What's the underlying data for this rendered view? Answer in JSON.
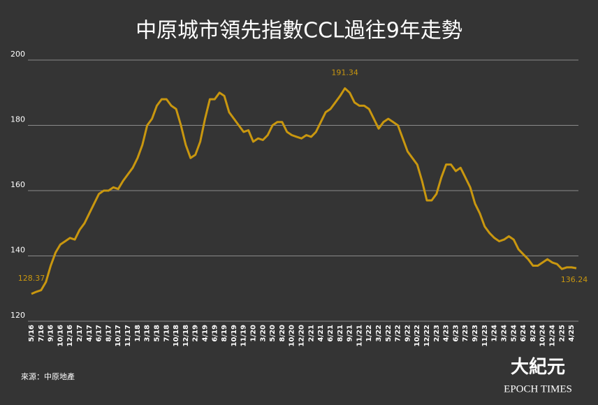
{
  "chart_data": {
    "type": "line",
    "title": "中原城市領先指數CCL過往9年走勢",
    "source": "來源：中原地產",
    "categories": [
      "5/16",
      null,
      "7/16",
      null,
      "9/16",
      null,
      "10/16",
      null,
      "12/16",
      null,
      "2/17",
      null,
      "4/17",
      null,
      "6/17",
      null,
      "8/17",
      null,
      "10/17",
      null,
      "11/17",
      null,
      "1/18",
      null,
      "3/18",
      null,
      "5/18",
      null,
      "7/18",
      null,
      "10/18",
      null,
      "12/18",
      null,
      "2/19",
      null,
      "4/19",
      null,
      "6/19",
      null,
      "8/19",
      null,
      "10/19",
      null,
      "11/19",
      null,
      "1/20",
      null,
      "3/20",
      null,
      "5/20",
      null,
      "8/20",
      null,
      "10/20",
      null,
      "12/20",
      null,
      "2/21",
      null,
      "4/21",
      null,
      "6/21",
      null,
      "8/21",
      null,
      "9/21",
      null,
      "11/21",
      null,
      "1/22",
      null,
      "3/22",
      null,
      "5/22",
      null,
      "7/22",
      null,
      "9/22",
      null,
      "10/22",
      null,
      "12/22",
      null,
      "2/23",
      null,
      "4/23",
      null,
      "6/23",
      null,
      "7/23",
      null,
      "9/23",
      null,
      "11/23",
      null,
      "1/24",
      null,
      "3/24",
      null,
      "5/24",
      null,
      "6/24",
      null,
      "8/24",
      null,
      "10/24",
      null,
      "12/24",
      null,
      "2/25",
      null,
      "4/25",
      null
    ],
    "series": [
      {
        "name": "CCL",
        "color": "#c9970f",
        "values": [
          128.37,
          129,
          129.5,
          132,
          137,
          141,
          143.5,
          144.5,
          145.5,
          145,
          148,
          150,
          153,
          156,
          159,
          160,
          160,
          161,
          160.5,
          163,
          165,
          167,
          170,
          174,
          180,
          182,
          186,
          188,
          188,
          186,
          185,
          180,
          174,
          170,
          171,
          175,
          182,
          188,
          188,
          190,
          189,
          184,
          182,
          180,
          178,
          178.5,
          175,
          176,
          175.5,
          177,
          180,
          181,
          181,
          178,
          177,
          176.5,
          176,
          177,
          176.5,
          178,
          181,
          184,
          185,
          187,
          189,
          191.34,
          190,
          187,
          186,
          186,
          185,
          182,
          179,
          181,
          182,
          181,
          180,
          176,
          172,
          170,
          168,
          163,
          157,
          157,
          159,
          164,
          168,
          168,
          166,
          167,
          164,
          161,
          156,
          153,
          149,
          147,
          145.5,
          144.5,
          145,
          146,
          145,
          142,
          140.5,
          139,
          137,
          137,
          138,
          139,
          138,
          137.5,
          136,
          136.5,
          136.5,
          136.24
        ],
        "value_labels": [
          "128.37",
          null,
          null,
          null,
          null,
          null,
          null,
          null,
          null,
          null,
          null,
          null,
          null,
          null,
          null,
          null,
          null,
          null,
          null,
          null,
          null,
          null,
          null,
          null,
          null,
          null,
          null,
          null,
          null,
          null,
          null,
          null,
          null,
          null,
          null,
          null,
          null,
          null,
          null,
          null,
          null,
          null,
          null,
          null,
          null,
          null,
          null,
          null,
          null,
          null,
          null,
          null,
          null,
          null,
          null,
          null,
          null,
          null,
          null,
          null,
          null,
          null,
          null,
          null,
          null,
          "191.34",
          null,
          null,
          null,
          null,
          null,
          null,
          null,
          null,
          null,
          null,
          null,
          null,
          null,
          null,
          null,
          null,
          null,
          null,
          null,
          null,
          null,
          null,
          null,
          null,
          null,
          null,
          null,
          null,
          null,
          null,
          null,
          null,
          null,
          null,
          null,
          null,
          null,
          null,
          null,
          null,
          null,
          null,
          null,
          null,
          null,
          null,
          null,
          "136.24"
        ]
      }
    ],
    "ylim": [
      120,
      200
    ],
    "yticks": [
      120,
      140,
      160,
      180,
      200
    ],
    "grid": true
  },
  "logo": {
    "name": "大紀元",
    "en": "EPOCH TIMES"
  }
}
